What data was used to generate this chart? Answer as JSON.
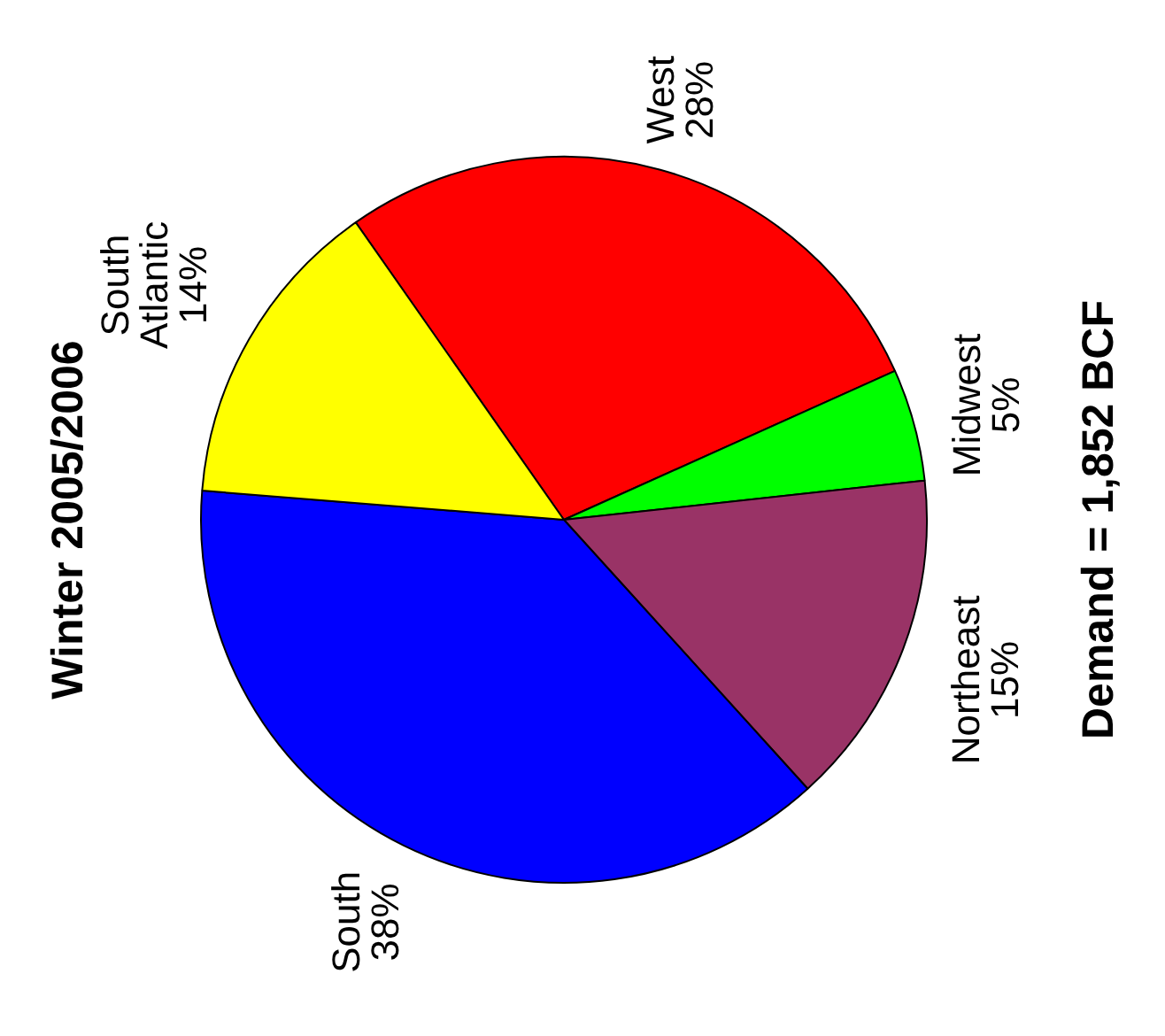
{
  "chart_data": {
    "type": "pie",
    "title": "Winter 2005/2006",
    "categories": [
      "West",
      "Midwest",
      "Northeast",
      "South",
      "South Atlantic"
    ],
    "values": [
      28,
      5,
      15,
      38,
      14
    ],
    "value_labels": [
      "28%",
      "5%",
      "15%",
      "38%",
      "14%"
    ],
    "colors": [
      "#ff0000",
      "#00ff00",
      "#993366",
      "#0000ff",
      "#ffff00"
    ],
    "annotations": [
      "Demand = 1,852 BCF"
    ]
  }
}
